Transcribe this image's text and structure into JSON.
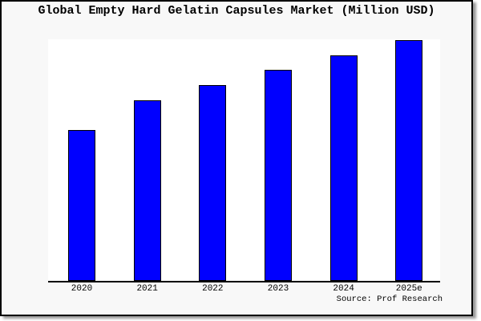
{
  "title": "Global Empty Hard Gelatin Capsules Market (Million USD)",
  "source": "Source: Prof Research",
  "chart_data": {
    "type": "bar",
    "title": "Global Empty Hard Gelatin Capsules Market (Million USD)",
    "categories": [
      "2020",
      "2021",
      "2022",
      "2023",
      "2024",
      "2025e"
    ],
    "values": [
      62.5,
      74.8,
      81.1,
      87.4,
      93.4,
      99.7
    ],
    "xlabel": "",
    "ylabel": "",
    "ylim": [
      0,
      100
    ],
    "value_labels_shown": false,
    "y_axis_shown": false,
    "grid": false,
    "legend": false,
    "bar_color": "#0000ff",
    "bar_edge_color": "#000000",
    "source": "Source: Prof Research"
  },
  "colors": {
    "background": "#f8f8f8",
    "plot_background": "#ffffff",
    "axis": "#000000",
    "frame_border": "#000000",
    "shadow": "#999999",
    "text": "#000000"
  }
}
